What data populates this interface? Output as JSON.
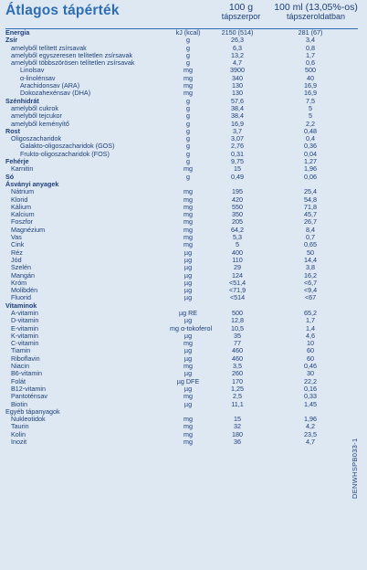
{
  "title": "Átlagos tápérték",
  "columns": {
    "c1_line1": "100 g",
    "c1_line2": "tápszerpor",
    "c2_line1": "100 ml (13,05%-os)",
    "c2_line2": "tápszeroldatban"
  },
  "rows": [
    {
      "name": "Energia",
      "unit": "kJ (kcal)",
      "v1": "2150 (514)",
      "v2": "281 (67)",
      "level": 0,
      "bold": true
    },
    {
      "name": "Zsír",
      "unit": "g",
      "v1": "26,3",
      "v2": "3,4",
      "level": 0,
      "bold": true
    },
    {
      "name": "amelyből telített zsírsavak",
      "unit": "g",
      "v1": "6,3",
      "v2": "0,8",
      "level": 1,
      "bold": false
    },
    {
      "name": "amelyből egyszeresen telítetlen zsírsavak",
      "unit": "g",
      "v1": "13,2",
      "v2": "1,7",
      "level": 1,
      "bold": false
    },
    {
      "name": "amelyből többszörösen telítetlen zsírsavak",
      "unit": "g",
      "v1": "4,7",
      "v2": "0,6",
      "level": 1,
      "bold": false
    },
    {
      "name": "Linolsav",
      "unit": "mg",
      "v1": "3900",
      "v2": "500",
      "level": 2,
      "bold": false
    },
    {
      "name": "α-linolénsav",
      "unit": "mg",
      "v1": "340",
      "v2": "40",
      "level": 2,
      "bold": false
    },
    {
      "name": "Arachidonsav (ARA)",
      "unit": "mg",
      "v1": "130",
      "v2": "16,9",
      "level": 2,
      "bold": false
    },
    {
      "name": "Dokozahexénsav (DHA)",
      "unit": "mg",
      "v1": "130",
      "v2": "16,9",
      "level": 2,
      "bold": false
    },
    {
      "name": "Szénhidrát",
      "unit": "g",
      "v1": "57,6",
      "v2": "7,5",
      "level": 0,
      "bold": true
    },
    {
      "name": "amelyből cukrok",
      "unit": "g",
      "v1": "38,4",
      "v2": "5",
      "level": 1,
      "bold": false
    },
    {
      "name": "amelyből tejcukor",
      "unit": "g",
      "v1": "38,4",
      "v2": "5",
      "level": 1,
      "bold": false
    },
    {
      "name": "amelyből keményítő",
      "unit": "g",
      "v1": "16,9",
      "v2": "2,2",
      "level": 1,
      "bold": false
    },
    {
      "name": "Rost",
      "unit": "g",
      "v1": "3,7",
      "v2": "0,48",
      "level": 0,
      "bold": true
    },
    {
      "name": "Oligoszacharidok",
      "unit": "g",
      "v1": "3,07",
      "v2": "0,4",
      "level": 1,
      "bold": false
    },
    {
      "name": "Galakto-oligoszacharidok (GOS)",
      "unit": "g",
      "v1": "2,76",
      "v2": "0,36",
      "level": 2,
      "bold": false
    },
    {
      "name": "Frukto-oligoszacharidok (FOS)",
      "unit": "g",
      "v1": "0,31",
      "v2": "0,04",
      "level": 2,
      "bold": false
    },
    {
      "name": "Fehérje",
      "unit": "g",
      "v1": "9,75",
      "v2": "1,27",
      "level": 0,
      "bold": true
    },
    {
      "name": "Karnitin",
      "unit": "mg",
      "v1": "15",
      "v2": "1,96",
      "level": 1,
      "bold": false
    },
    {
      "name": "Só",
      "unit": "g",
      "v1": "0,49",
      "v2": "0,06",
      "level": 0,
      "bold": true
    },
    {
      "name": "Ásványi anyagek",
      "unit": "",
      "v1": "",
      "v2": "",
      "level": 0,
      "bold": true
    },
    {
      "name": "Nátrium",
      "unit": "mg",
      "v1": "195",
      "v2": "25,4",
      "level": 1,
      "bold": false
    },
    {
      "name": "Klorid",
      "unit": "mg",
      "v1": "420",
      "v2": "54,8",
      "level": 1,
      "bold": false
    },
    {
      "name": "Kálium",
      "unit": "mg",
      "v1": "550",
      "v2": "71,8",
      "level": 1,
      "bold": false
    },
    {
      "name": "Kalcium",
      "unit": "mg",
      "v1": "350",
      "v2": "45,7",
      "level": 1,
      "bold": false
    },
    {
      "name": "Foszfor",
      "unit": "mg",
      "v1": "205",
      "v2": "26,7",
      "level": 1,
      "bold": false
    },
    {
      "name": "Magnézium",
      "unit": "mg",
      "v1": "64,2",
      "v2": "8,4",
      "level": 1,
      "bold": false
    },
    {
      "name": "Vas",
      "unit": "mg",
      "v1": "5,3",
      "v2": "0,7",
      "level": 1,
      "bold": false
    },
    {
      "name": "Cink",
      "unit": "mg",
      "v1": "5",
      "v2": "0,65",
      "level": 1,
      "bold": false
    },
    {
      "name": "Réz",
      "unit": "µg",
      "v1": "400",
      "v2": "50",
      "level": 1,
      "bold": false
    },
    {
      "name": "Jód",
      "unit": "µg",
      "v1": "110",
      "v2": "14,4",
      "level": 1,
      "bold": false
    },
    {
      "name": "Szelén",
      "unit": "µg",
      "v1": "29",
      "v2": "3,8",
      "level": 1,
      "bold": false
    },
    {
      "name": "Mangán",
      "unit": "µg",
      "v1": "124",
      "v2": "16,2",
      "level": 1,
      "bold": false
    },
    {
      "name": "Króm",
      "unit": "µg",
      "v1": "<51,4",
      "v2": "<6,7",
      "level": 1,
      "bold": false
    },
    {
      "name": "Molibdén",
      "unit": "µg",
      "v1": "<71,9",
      "v2": "<9,4",
      "level": 1,
      "bold": false
    },
    {
      "name": "Fluorid",
      "unit": "µg",
      "v1": "<514",
      "v2": "<67",
      "level": 1,
      "bold": false
    },
    {
      "name": "Vitaminok",
      "unit": "",
      "v1": "",
      "v2": "",
      "level": 0,
      "bold": true
    },
    {
      "name": "A-vitamin",
      "unit": "µg RE",
      "v1": "500",
      "v2": "65,2",
      "level": 1,
      "bold": false
    },
    {
      "name": "D-vitamin",
      "unit": "µg",
      "v1": "12,8",
      "v2": "1,7",
      "level": 1,
      "bold": false
    },
    {
      "name": "E-vitamin",
      "unit": "mg α-tokoferol",
      "v1": "10,5",
      "v2": "1,4",
      "level": 1,
      "bold": false
    },
    {
      "name": "K-vitamin",
      "unit": "µg",
      "v1": "35",
      "v2": "4,6",
      "level": 1,
      "bold": false
    },
    {
      "name": "C-vitamin",
      "unit": "mg",
      "v1": "77",
      "v2": "10",
      "level": 1,
      "bold": false
    },
    {
      "name": "Tiamin",
      "unit": "µg",
      "v1": "460",
      "v2": "60",
      "level": 1,
      "bold": false
    },
    {
      "name": "Riboflavin",
      "unit": "µg",
      "v1": "460",
      "v2": "60",
      "level": 1,
      "bold": false
    },
    {
      "name": "Niacin",
      "unit": "mg",
      "v1": "3,5",
      "v2": "0,46",
      "level": 1,
      "bold": false
    },
    {
      "name": "B6-vitamin",
      "unit": "µg",
      "v1": "260",
      "v2": "30",
      "level": 1,
      "bold": false
    },
    {
      "name": "Folát",
      "unit": "µg DFE",
      "v1": "170",
      "v2": "22,2",
      "level": 1,
      "bold": false
    },
    {
      "name": "B12-vitamin",
      "unit": "µg",
      "v1": "1,25",
      "v2": "0,16",
      "level": 1,
      "bold": false
    },
    {
      "name": "Pantoténsav",
      "unit": "mg",
      "v1": "2,5",
      "v2": "0,33",
      "level": 1,
      "bold": false
    },
    {
      "name": "Biotin",
      "unit": "µg",
      "v1": "11,1",
      "v2": "1,45",
      "level": 1,
      "bold": false
    },
    {
      "name": "Egyéb tápanyagok",
      "unit": "",
      "v1": "",
      "v2": "",
      "level": 0,
      "bold": false
    },
    {
      "name": "Nukleotidok",
      "unit": "mg",
      "v1": "15",
      "v2": "1,96",
      "level": 1,
      "bold": false
    },
    {
      "name": "Taurin",
      "unit": "mg",
      "v1": "32",
      "v2": "4,2",
      "level": 1,
      "bold": false
    },
    {
      "name": "Kolin",
      "unit": "mg",
      "v1": "180",
      "v2": "23,5",
      "level": 1,
      "bold": false
    },
    {
      "name": "Inozit",
      "unit": "mg",
      "v1": "36",
      "v2": "4,7",
      "level": 1,
      "bold": false
    }
  ],
  "code": "DENWHSPB033-1"
}
